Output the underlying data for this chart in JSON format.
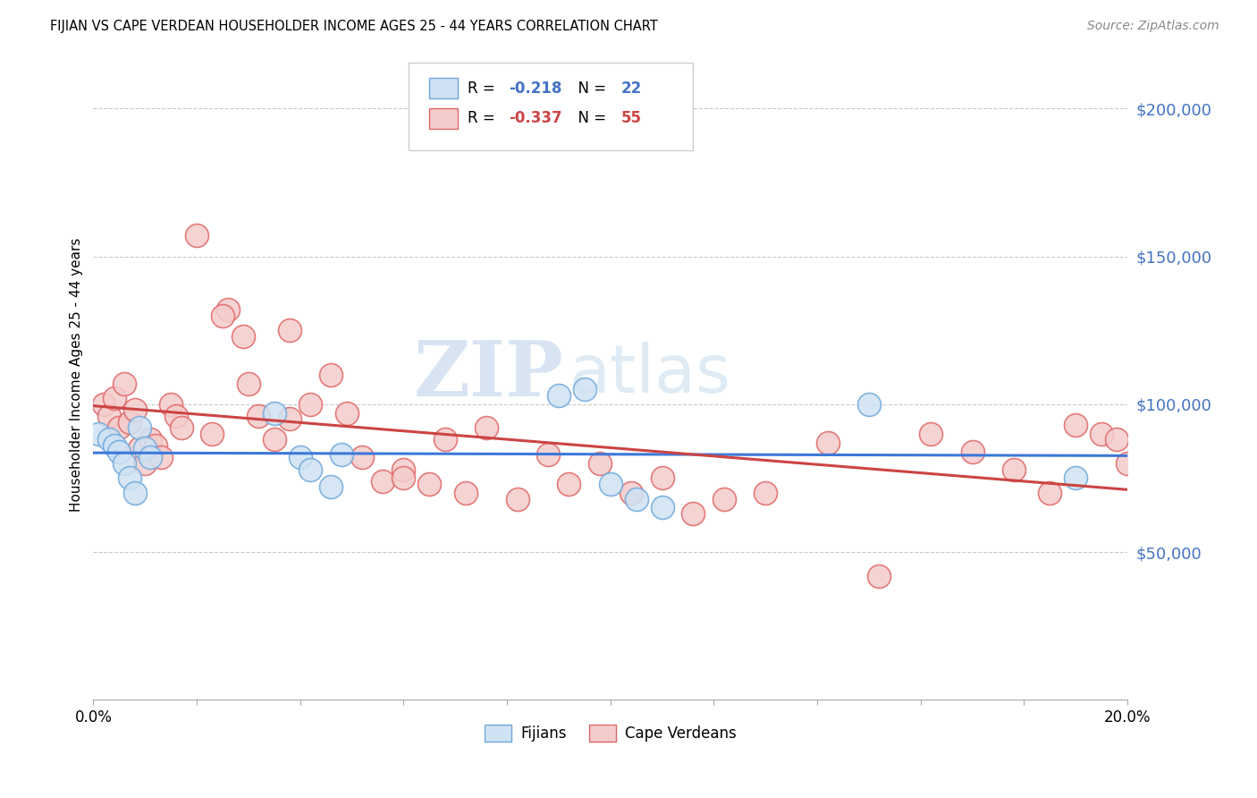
{
  "title": "FIJIAN VS CAPE VERDEAN HOUSEHOLDER INCOME AGES 25 - 44 YEARS CORRELATION CHART",
  "source": "Source: ZipAtlas.com",
  "ylabel": "Householder Income Ages 25 - 44 years",
  "x_min": 0.0,
  "x_max": 0.2,
  "y_min": 0,
  "y_max": 220000,
  "y_ticks": [
    0,
    50000,
    100000,
    150000,
    200000
  ],
  "y_tick_labels": [
    "",
    "$50,000",
    "$100,000",
    "$150,000",
    "$200,000"
  ],
  "x_ticks": [
    0.0,
    0.02,
    0.04,
    0.06,
    0.08,
    0.1,
    0.12,
    0.14,
    0.16,
    0.18,
    0.2
  ],
  "x_tick_labels": [
    "0.0%",
    "",
    "",
    "",
    "",
    "",
    "",
    "",
    "",
    "",
    "20.0%"
  ],
  "fijian_edge_color": "#6fa8dc",
  "fijian_fill_color": "#cfe2f3",
  "cv_edge_color": "#e06666",
  "cv_fill_color": "#f4cccc",
  "fijian_line_color": "#3c78d8",
  "cv_line_color": "#cc4444",
  "fijian_R": "-0.218",
  "fijian_N": "22",
  "cv_R": "-0.337",
  "cv_N": "55",
  "legend_label_fijian": "Fijians",
  "legend_label_cv": "Cape Verdeans",
  "watermark_zip": "ZIP",
  "watermark_atlas": "atlas",
  "fijian_x": [
    0.001,
    0.003,
    0.004,
    0.005,
    0.006,
    0.007,
    0.008,
    0.009,
    0.01,
    0.011,
    0.035,
    0.04,
    0.042,
    0.046,
    0.048,
    0.09,
    0.095,
    0.1,
    0.105,
    0.11,
    0.15,
    0.19
  ],
  "fijian_y": [
    90000,
    88000,
    86000,
    84000,
    80000,
    75000,
    70000,
    92000,
    85000,
    82000,
    97000,
    82000,
    78000,
    72000,
    83000,
    103000,
    105000,
    73000,
    68000,
    65000,
    100000,
    75000
  ],
  "cv_x": [
    0.002,
    0.003,
    0.004,
    0.005,
    0.006,
    0.007,
    0.008,
    0.009,
    0.01,
    0.011,
    0.012,
    0.013,
    0.015,
    0.016,
    0.017,
    0.02,
    0.023,
    0.026,
    0.029,
    0.032,
    0.035,
    0.038,
    0.042,
    0.046,
    0.049,
    0.052,
    0.056,
    0.06,
    0.065,
    0.068,
    0.072,
    0.076,
    0.082,
    0.088,
    0.092,
    0.098,
    0.104,
    0.11,
    0.116,
    0.122,
    0.13,
    0.142,
    0.152,
    0.162,
    0.17,
    0.178,
    0.185,
    0.19,
    0.195,
    0.198,
    0.2,
    0.038,
    0.025,
    0.03,
    0.06
  ],
  "cv_y": [
    100000,
    96000,
    102000,
    92000,
    107000,
    94000,
    98000,
    85000,
    80000,
    88000,
    86000,
    82000,
    100000,
    96000,
    92000,
    157000,
    90000,
    132000,
    123000,
    96000,
    88000,
    95000,
    100000,
    110000,
    97000,
    82000,
    74000,
    78000,
    73000,
    88000,
    70000,
    92000,
    68000,
    83000,
    73000,
    80000,
    70000,
    75000,
    63000,
    68000,
    70000,
    87000,
    42000,
    90000,
    84000,
    78000,
    70000,
    93000,
    90000,
    88000,
    80000,
    125000,
    130000,
    107000,
    75000
  ]
}
